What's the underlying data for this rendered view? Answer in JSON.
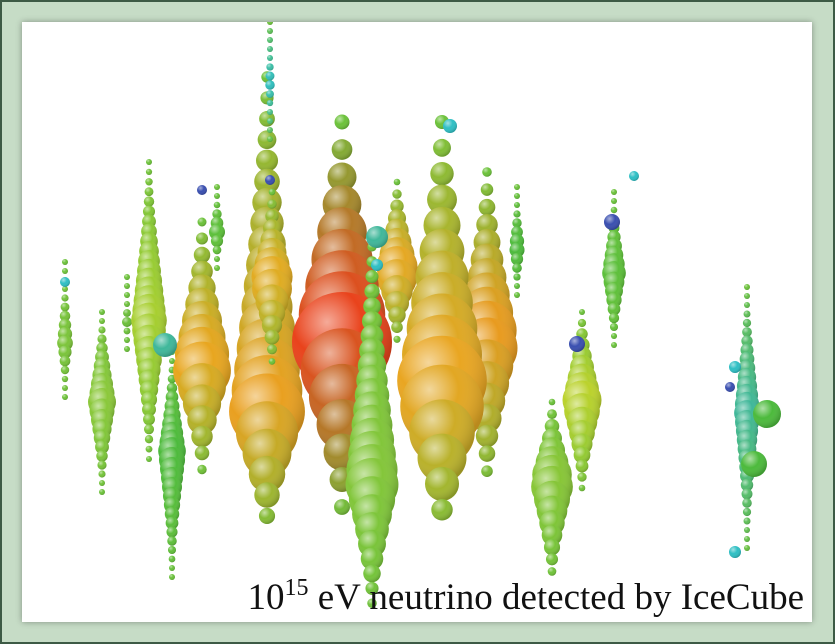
{
  "caption": {
    "base": "10",
    "exponent": "15",
    "text": " eV neutrino detected by IceCube"
  }
}
